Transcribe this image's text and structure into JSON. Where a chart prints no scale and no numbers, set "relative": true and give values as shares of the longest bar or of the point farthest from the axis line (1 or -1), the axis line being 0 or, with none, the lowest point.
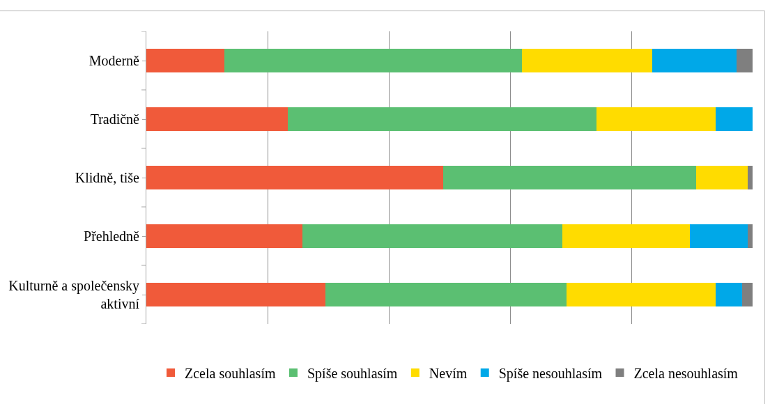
{
  "chart_data": {
    "type": "bar",
    "orientation": "horizontal",
    "stacked": true,
    "relative": true,
    "grid": "x",
    "legend": "bottom",
    "categories": [
      "Moderně",
      "Tradičně",
      "Klidně, tiše",
      "Přehledně",
      "Kulturně a společensky aktivní"
    ],
    "series": [
      {
        "name": "Zcela souhlasím",
        "color": "#f05a3a",
        "values": [
          0.129,
          0.233,
          0.49,
          0.257,
          0.295
        ]
      },
      {
        "name": "Spíše souhlasím",
        "color": "#5bbf72",
        "values": [
          0.49,
          0.51,
          0.417,
          0.429,
          0.398
        ]
      },
      {
        "name": "Nevím",
        "color": "#ffdc00",
        "values": [
          0.215,
          0.196,
          0.085,
          0.21,
          0.246
        ]
      },
      {
        "name": "Spíše nesouhlasím",
        "color": "#00a8e8",
        "values": [
          0.14,
          0.061,
          0,
          0.096,
          0.044
        ]
      },
      {
        "name": "Zcela nesouhlasím",
        "color": "#7f7f7f",
        "values": [
          0.026,
          0,
          0.008,
          0.008,
          0.017
        ]
      }
    ]
  }
}
